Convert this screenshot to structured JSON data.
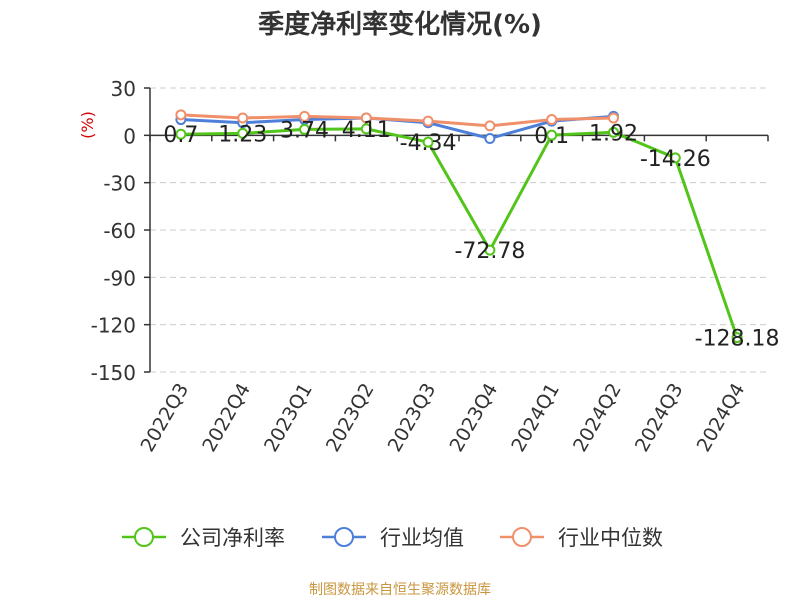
{
  "chart_data": {
    "type": "line",
    "title": "季度净利率变化情况(%)",
    "ylabel": "(%)",
    "xlabel": "",
    "categories": [
      "2022Q3",
      "2022Q4",
      "2023Q1",
      "2023Q2",
      "2023Q3",
      "2023Q4",
      "2024Q1",
      "2024Q2",
      "2024Q3",
      "2024Q4"
    ],
    "ylim": [
      -150,
      30
    ],
    "yticks": [
      "30",
      "0",
      "-30",
      "-60",
      "-90",
      "-120",
      "-150"
    ],
    "grid": true,
    "legend_position": "bottom",
    "series": [
      {
        "name": "公司净利率",
        "color": "#52c41a",
        "values": [
          0.7,
          1.23,
          3.74,
          4.11,
          -4.34,
          -72.78,
          0.1,
          1.92,
          -14.26,
          -128.18
        ],
        "labels": [
          "0.7",
          "1.23",
          "3.74",
          "4.11",
          "-4.34",
          "-72.78",
          "0.1",
          "1.92",
          "-14.26",
          "-128.18"
        ]
      },
      {
        "name": "行业均值",
        "color": "#4e7fd9",
        "values": [
          10,
          8,
          10,
          11,
          8,
          -2,
          9,
          12,
          null,
          null
        ]
      },
      {
        "name": "行业中位数",
        "color": "#f0906a",
        "values": [
          13,
          11,
          12,
          11,
          9,
          6,
          10,
          11,
          null,
          null
        ]
      }
    ]
  },
  "footer": "制图数据来自恒生聚源数据库"
}
